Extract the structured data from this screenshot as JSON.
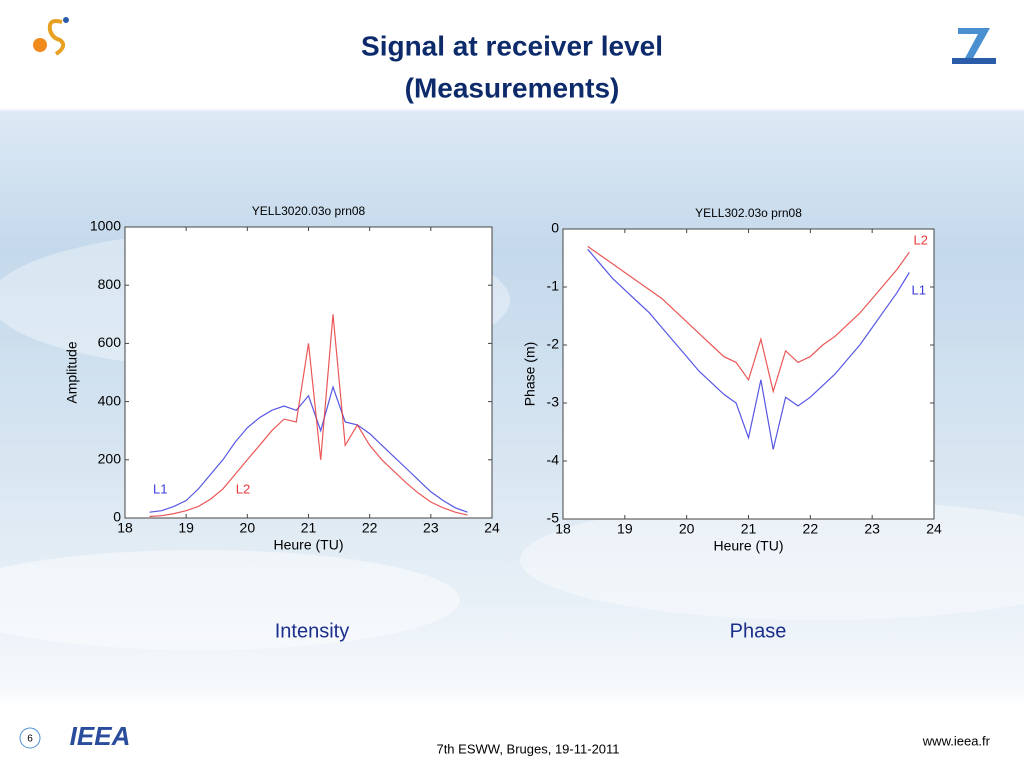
{
  "slide": {
    "title_line1": "Signal at receiver level",
    "title_line2": "(Measurements)",
    "captions": [
      "Intensity",
      "Phase"
    ],
    "footer": "7th ESWW, Bruges, 19-11-2011",
    "website": "www.ieea.fr",
    "page": "6",
    "logo": "IEEA"
  },
  "chart_data": [
    {
      "type": "line",
      "title": "YELL3020.03o  prn08",
      "xlabel": "Heure (TU)",
      "ylabel": "Amplitude",
      "x": [
        18.4,
        18.6,
        18.8,
        19.0,
        19.2,
        19.4,
        19.6,
        19.8,
        20.0,
        20.2,
        20.4,
        20.6,
        20.8,
        21.0,
        21.2,
        21.4,
        21.6,
        21.8,
        22.0,
        22.2,
        22.4,
        22.6,
        22.8,
        23.0,
        23.2,
        23.4,
        23.6
      ],
      "series": [
        {
          "name": "L1",
          "color": "#3a3ae0",
          "values": [
            20,
            25,
            40,
            60,
            100,
            150,
            200,
            260,
            310,
            345,
            370,
            385,
            370,
            420,
            300,
            450,
            330,
            320,
            290,
            250,
            210,
            170,
            130,
            90,
            60,
            35,
            20
          ]
        },
        {
          "name": "L2",
          "color": "#e83a3a",
          "values": [
            5,
            8,
            15,
            25,
            40,
            65,
            100,
            150,
            200,
            250,
            300,
            340,
            330,
            600,
            200,
            700,
            250,
            320,
            250,
            200,
            160,
            120,
            85,
            55,
            35,
            20,
            10
          ]
        }
      ],
      "xlim": [
        18,
        24
      ],
      "xticks": [
        18,
        19,
        20,
        21,
        22,
        23,
        24
      ],
      "ylim": [
        0,
        1000
      ],
      "yticks": [
        0,
        200,
        400,
        600,
        800,
        1000
      ],
      "grid": false
    },
    {
      "type": "line",
      "title": "YELL302.03o prn08",
      "xlabel": "Heure (TU)",
      "ylabel": "Phase (m)",
      "x": [
        18.4,
        18.6,
        18.8,
        19.0,
        19.2,
        19.4,
        19.6,
        19.8,
        20.0,
        20.2,
        20.4,
        20.6,
        20.8,
        21.0,
        21.2,
        21.4,
        21.6,
        21.8,
        22.0,
        22.2,
        22.4,
        22.6,
        22.8,
        23.0,
        23.2,
        23.4,
        23.6
      ],
      "series": [
        {
          "name": "L2",
          "color": "#e83a3a",
          "values": [
            -0.3,
            -0.45,
            -0.6,
            -0.75,
            -0.9,
            -1.05,
            -1.2,
            -1.4,
            -1.6,
            -1.8,
            -2.0,
            -2.2,
            -2.3,
            -2.6,
            -1.9,
            -2.8,
            -2.1,
            -2.3,
            -2.2,
            -2.0,
            -1.85,
            -1.65,
            -1.45,
            -1.2,
            -0.95,
            -0.7,
            -0.4
          ]
        },
        {
          "name": "L1",
          "color": "#3a3ae0",
          "values": [
            -0.35,
            -0.6,
            -0.85,
            -1.05,
            -1.25,
            -1.45,
            -1.7,
            -1.95,
            -2.2,
            -2.45,
            -2.65,
            -2.85,
            -3.0,
            -3.6,
            -2.6,
            -3.8,
            -2.9,
            -3.05,
            -2.9,
            -2.7,
            -2.5,
            -2.25,
            -2.0,
            -1.7,
            -1.4,
            -1.1,
            -0.75
          ]
        }
      ],
      "xlim": [
        18,
        24
      ],
      "xticks": [
        18,
        19,
        20,
        21,
        22,
        23,
        24
      ],
      "ylim": [
        -5,
        0
      ],
      "yticks": [
        0,
        -1,
        -2,
        -3,
        -4,
        -5
      ],
      "grid": false
    }
  ]
}
